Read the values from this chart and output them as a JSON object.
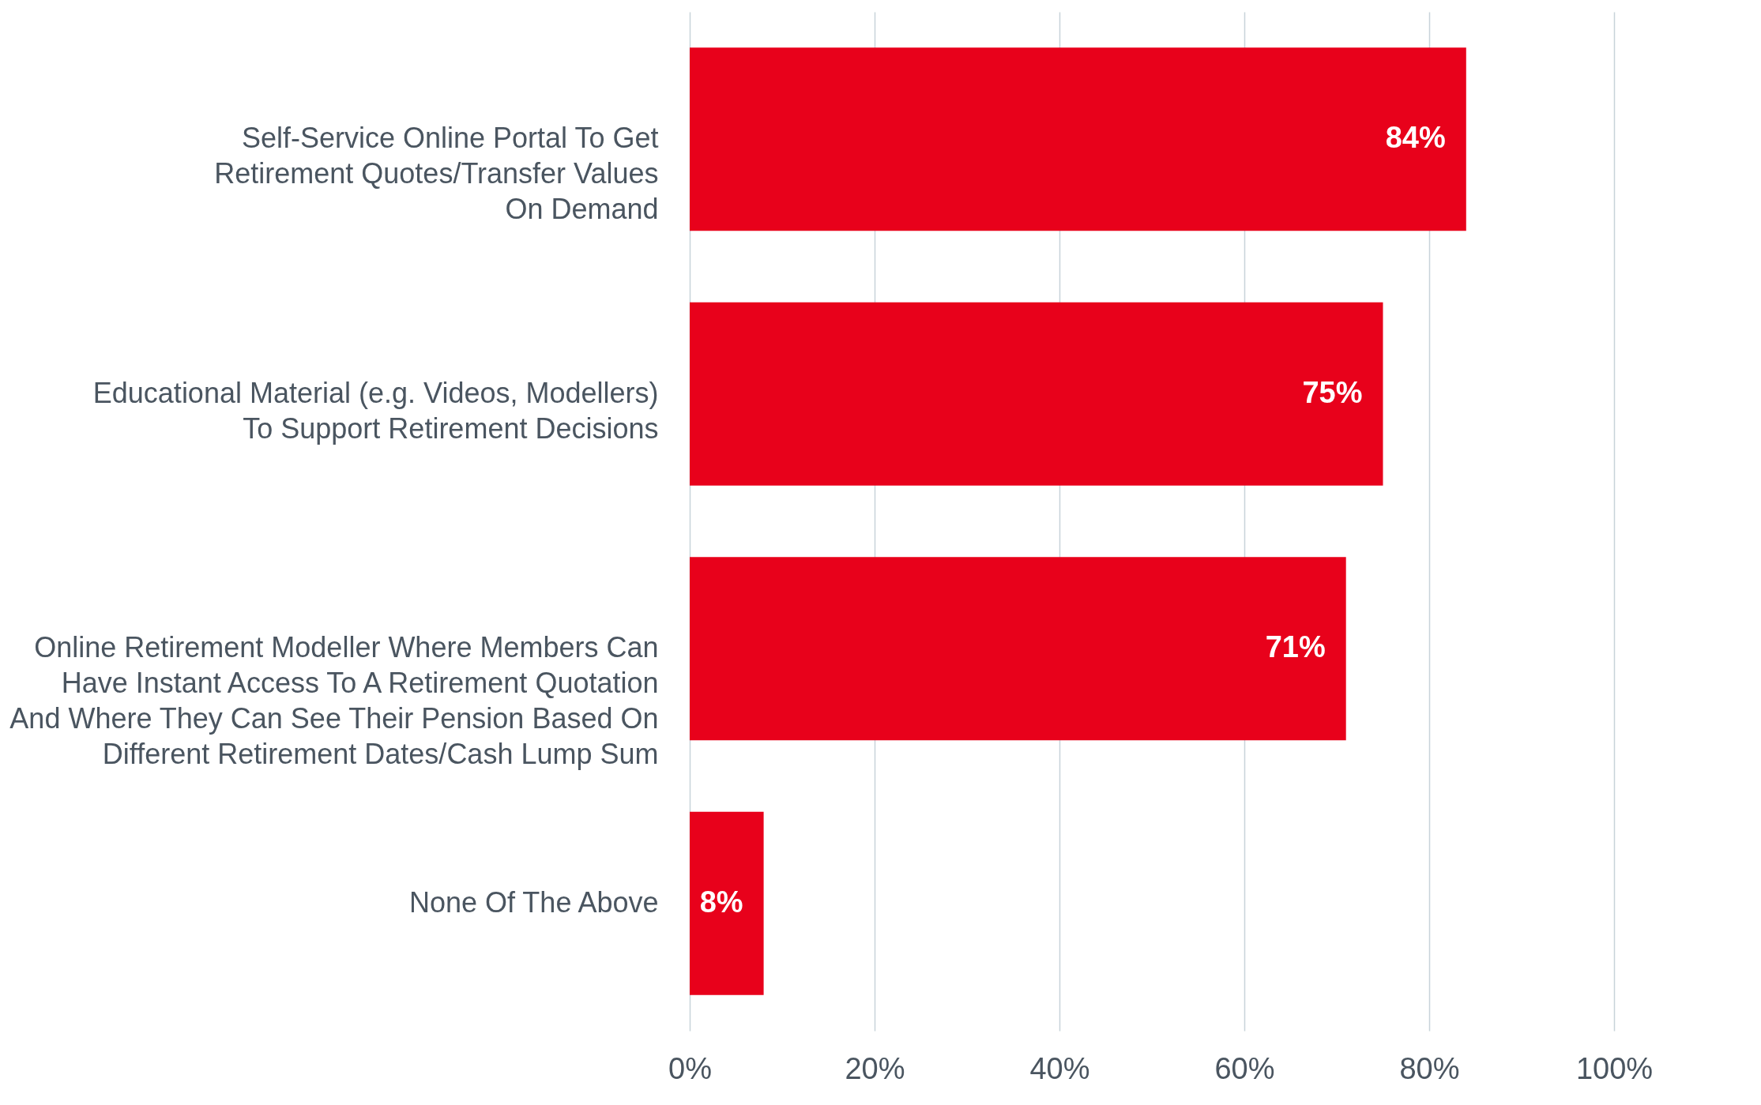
{
  "chart_data": {
    "type": "bar",
    "orientation": "horizontal",
    "categories": [
      "Self-Service Online Portal To Get\nRetirement Quotes/Transfer Values\nOn Demand",
      "Educational Material (e.g. Videos, Modellers)\nTo Support Retirement Decisions",
      "Online Retirement Modeller Where Members Can\nHave Instant Access To A Retirement Quotation\nAnd Where They Can See Their Pension Based On\nDifferent Retirement Dates/Cash Lump Sum",
      "None Of The Above"
    ],
    "values": [
      84,
      75,
      71,
      8
    ],
    "value_labels": [
      "84%",
      "75%",
      "71%",
      "8%"
    ],
    "color": "#e8011b",
    "xlim": [
      0,
      100
    ],
    "xticks": [
      {
        "value": 0,
        "label": "0%"
      },
      {
        "value": 20,
        "label": "20%"
      },
      {
        "value": 40,
        "label": "40%"
      },
      {
        "value": 60,
        "label": "60%"
      },
      {
        "value": 80,
        "label": "80%"
      },
      {
        "value": 100,
        "label": "100%"
      }
    ],
    "grid": "x"
  }
}
